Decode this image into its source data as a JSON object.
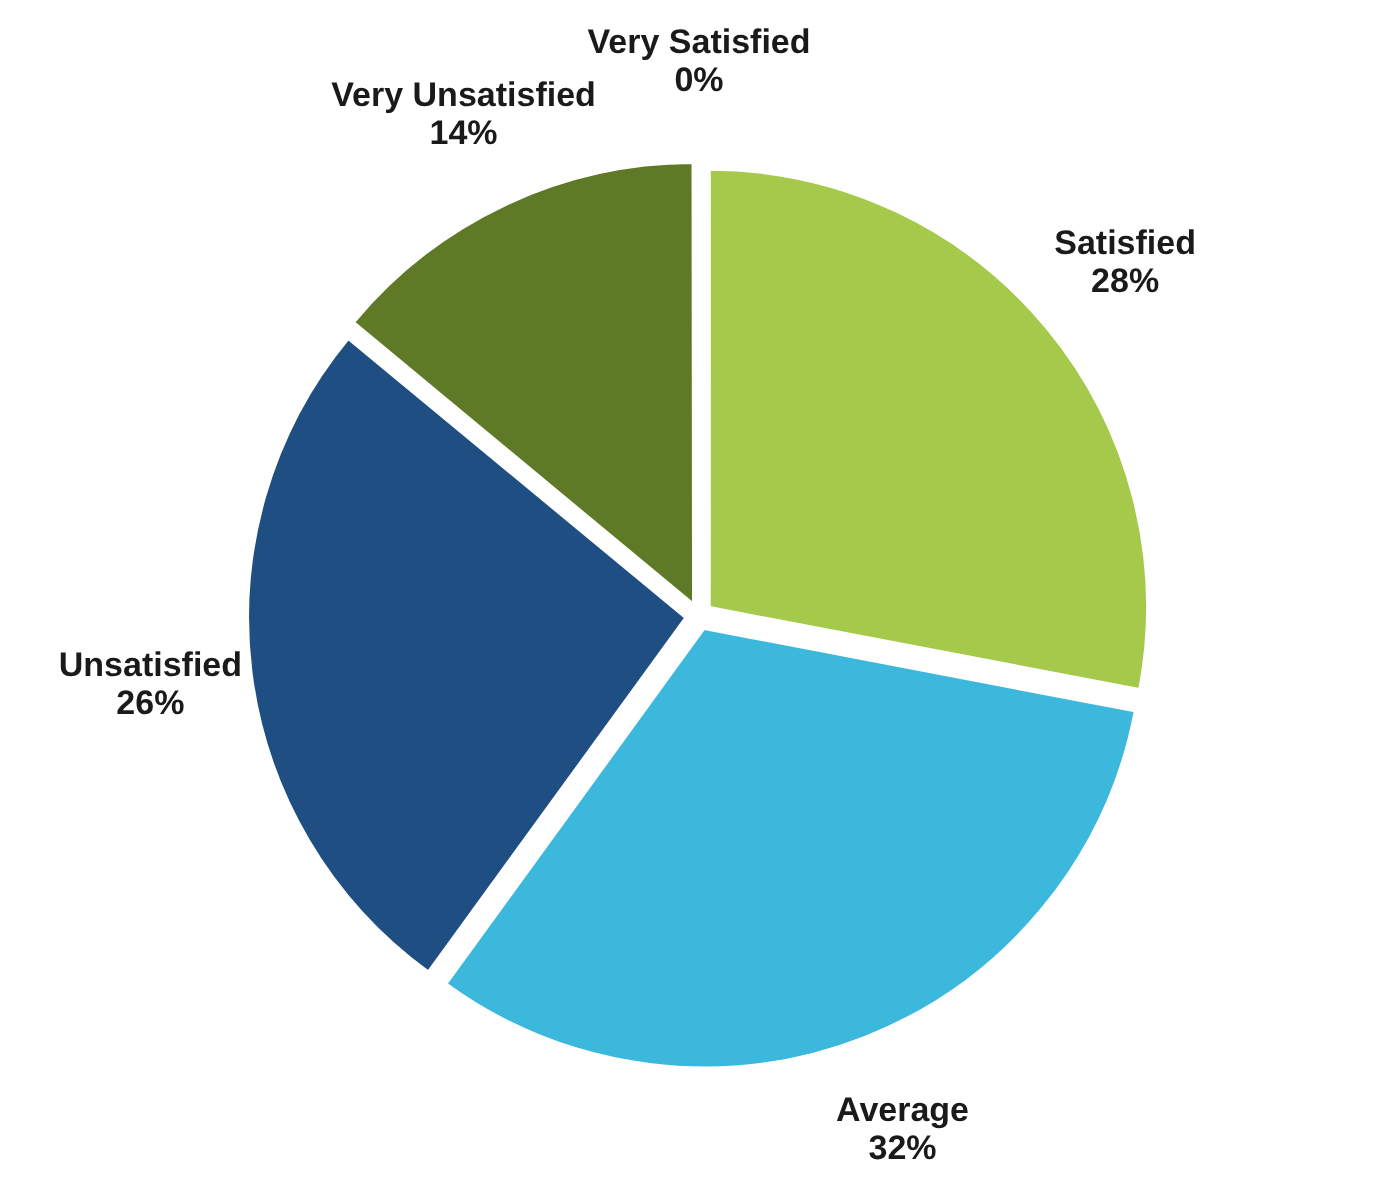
{
  "chart_data": {
    "type": "pie",
    "categories": [
      "Very Satisfied",
      "Satisfied",
      "Average",
      "Unsatisfied",
      "Very Unsatisfied"
    ],
    "values": [
      0,
      28,
      32,
      26,
      14
    ],
    "colors": [
      "#8faa3a",
      "#a5c94a",
      "#3cb8dc",
      "#1f4e82",
      "#5f7a26"
    ],
    "value_labels": [
      "0%",
      "28%",
      "32%",
      "26%",
      "14%"
    ],
    "legend": false
  }
}
